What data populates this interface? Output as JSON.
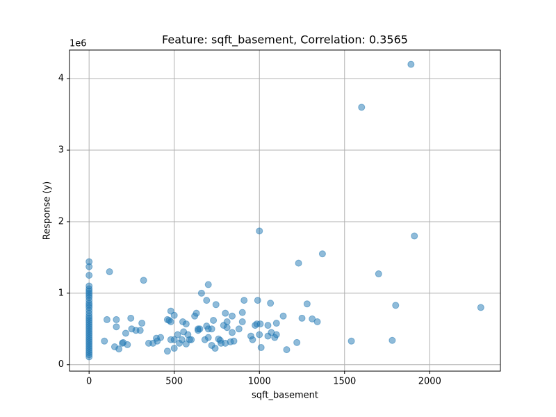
{
  "chart_data": {
    "type": "scatter",
    "title": "Feature: sqft_basement, Correlation: 0.3565",
    "xlabel": "sqft_basement",
    "ylabel": "Response (y)",
    "y_offset_label": "1e6",
    "color": "#1f77b4",
    "alpha": 0.5,
    "grid": true,
    "xlim": [
      -115,
      2415
    ],
    "ylim": [
      -90000,
      4400000
    ],
    "xticks": [
      0,
      500,
      1000,
      1500,
      2000
    ],
    "yticks": [
      {
        "value": 0,
        "label": "0"
      },
      {
        "value": 1000000,
        "label": "1"
      },
      {
        "value": 2000000,
        "label": "2"
      },
      {
        "value": 3000000,
        "label": "3"
      },
      {
        "value": 4000000,
        "label": "4"
      }
    ],
    "x": [
      0,
      0,
      0,
      0,
      0,
      0,
      0,
      0,
      0,
      0,
      0,
      0,
      0,
      0,
      0,
      0,
      0,
      0,
      0,
      0,
      0,
      0,
      0,
      0,
      0,
      0,
      0,
      0,
      0,
      0,
      0,
      0,
      0,
      0,
      0,
      90,
      105,
      120,
      150,
      160,
      160,
      175,
      195,
      200,
      215,
      225,
      245,
      250,
      275,
      300,
      310,
      320,
      350,
      375,
      395,
      400,
      420,
      460,
      460,
      470,
      480,
      480,
      480,
      500,
      500,
      500,
      520,
      530,
      545,
      550,
      555,
      570,
      570,
      580,
      590,
      600,
      620,
      630,
      640,
      640,
      650,
      660,
      680,
      690,
      690,
      700,
      700,
      700,
      720,
      720,
      730,
      740,
      745,
      760,
      770,
      775,
      790,
      800,
      800,
      810,
      810,
      830,
      840,
      840,
      850,
      880,
      900,
      900,
      910,
      950,
      960,
      975,
      985,
      990,
      1000,
      1000,
      1005,
      1010,
      1050,
      1050,
      1065,
      1070,
      1090,
      1100,
      1100,
      1140,
      1160,
      1220,
      1230,
      1250,
      1280,
      1310,
      1340,
      1370,
      1540,
      1600,
      1700,
      1780,
      1800,
      1890,
      1910,
      2300
    ],
    "y": [
      1440000,
      1370000,
      1250000,
      1100000,
      1060000,
      1030000,
      1000000,
      970000,
      940000,
      900000,
      860000,
      830000,
      800000,
      760000,
      720000,
      680000,
      650000,
      620000,
      590000,
      560000,
      530000,
      500000,
      470000,
      440000,
      410000,
      380000,
      350000,
      320000,
      290000,
      260000,
      230000,
      200000,
      170000,
      140000,
      110000,
      330000,
      630000,
      1300000,
      250000,
      630000,
      530000,
      220000,
      300000,
      310000,
      440000,
      280000,
      650000,
      500000,
      480000,
      480000,
      580000,
      1180000,
      300000,
      300000,
      370000,
      330000,
      380000,
      190000,
      630000,
      620000,
      750000,
      600000,
      350000,
      350000,
      690000,
      230000,
      420000,
      300000,
      350000,
      600000,
      460000,
      570000,
      290000,
      420000,
      350000,
      350000,
      680000,
      720000,
      500000,
      480000,
      500000,
      1000000,
      350000,
      540000,
      900000,
      500000,
      1120000,
      380000,
      270000,
      500000,
      620000,
      230000,
      840000,
      360000,
      340000,
      300000,
      550000,
      720000,
      300000,
      520000,
      600000,
      320000,
      680000,
      450000,
      330000,
      500000,
      730000,
      600000,
      900000,
      400000,
      350000,
      550000,
      570000,
      900000,
      1870000,
      420000,
      570000,
      240000,
      550000,
      400000,
      860000,
      450000,
      380000,
      420000,
      580000,
      680000,
      210000,
      310000,
      1420000,
      650000,
      850000,
      640000,
      600000,
      1550000,
      330000,
      3600000,
      1270000,
      340000,
      830000,
      4200000,
      1800000,
      800000
    ]
  }
}
